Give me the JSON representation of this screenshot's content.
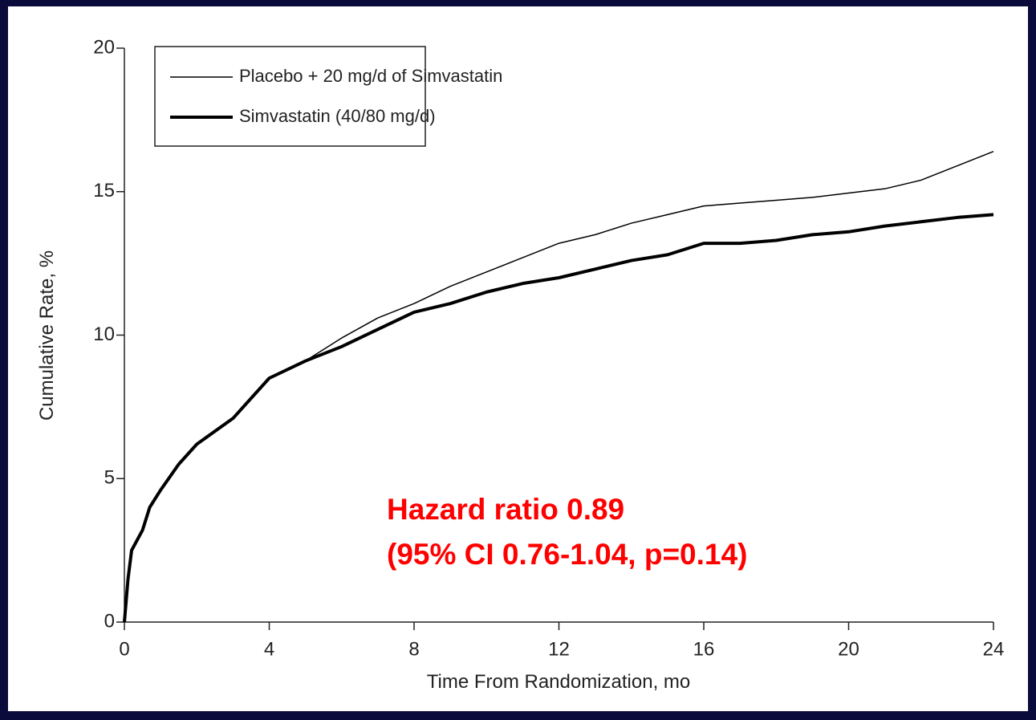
{
  "chart_data": {
    "type": "line",
    "x_label": "Time From Randomization, mo",
    "y_label": "Cumulative Rate, %",
    "x": [
      0,
      0.1,
      0.2,
      0.5,
      0.7,
      1,
      1.5,
      2,
      3,
      4,
      5,
      6,
      7,
      8,
      9,
      10,
      11,
      12,
      13,
      14,
      15,
      16,
      17,
      18,
      19,
      20,
      21,
      22,
      23,
      24
    ],
    "series": [
      {
        "name": "Placebo + 20 mg/d of Simvastatin",
        "color": "#000000",
        "line_width": 1.5,
        "values": [
          0,
          1.5,
          2.5,
          3.2,
          4,
          4.6,
          5.5,
          6.2,
          7.1,
          8.5,
          9.1,
          9.9,
          10.6,
          11.1,
          11.7,
          12.2,
          12.7,
          13.2,
          13.5,
          13.9,
          14.2,
          14.5,
          14.6,
          14.7,
          14.8,
          14.95,
          15.1,
          15.4,
          15.9,
          16.4
        ]
      },
      {
        "name": "Simvastatin (40/80 mg/d)",
        "color": "#000000",
        "line_width": 4,
        "values": [
          0,
          1.5,
          2.5,
          3.2,
          4,
          4.6,
          5.5,
          6.2,
          7.1,
          8.5,
          9.1,
          9.6,
          10.2,
          10.8,
          11.1,
          11.5,
          11.8,
          12.0,
          12.3,
          12.6,
          12.8,
          13.2,
          13.2,
          13.3,
          13.5,
          13.6,
          13.8,
          13.95,
          14.1,
          14.2
        ]
      }
    ],
    "xlim": [
      0,
      24
    ],
    "xticks": [
      0,
      4,
      8,
      12,
      16,
      20,
      24
    ],
    "ylim": [
      0,
      20
    ],
    "yticks": [
      0,
      5,
      10,
      15,
      20
    ],
    "legend": "upper left",
    "annotations": [
      "Hazard ratio 0.89",
      "(95% CI 0.76-1.04, p=0.14)"
    ],
    "annotation_color": "#ff0000"
  }
}
